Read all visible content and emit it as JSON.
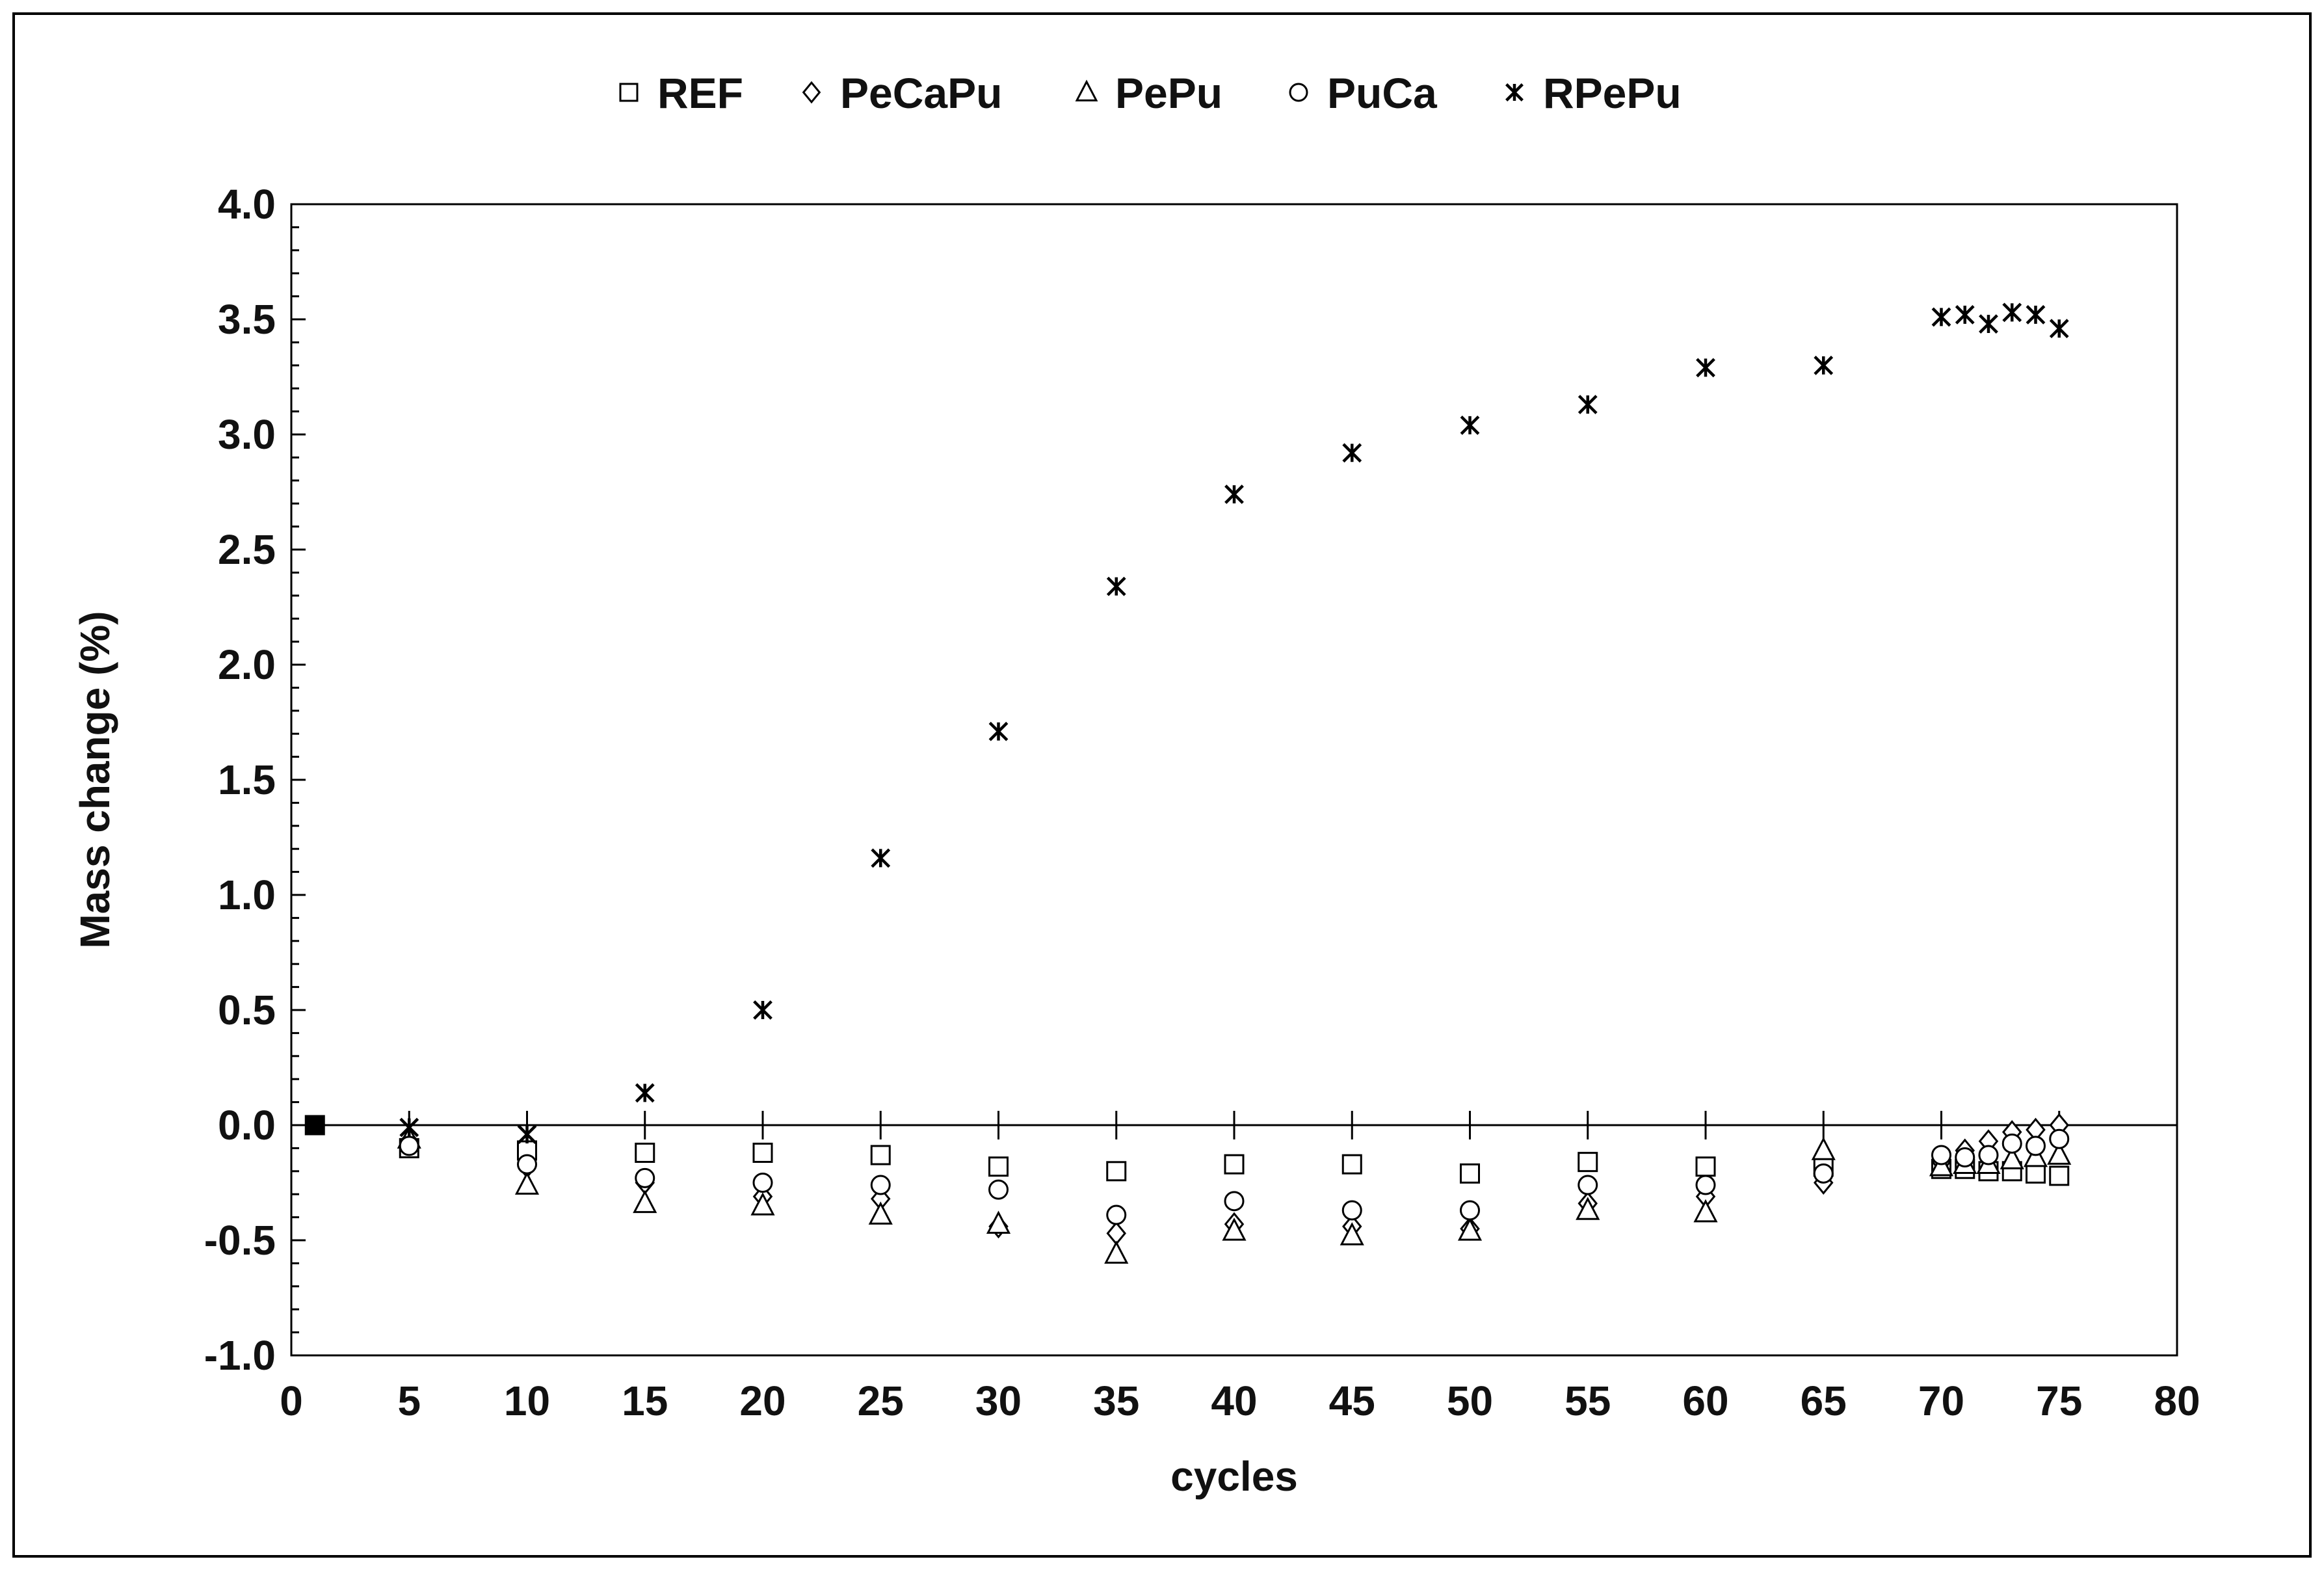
{
  "chart_data": {
    "type": "scatter",
    "title": "",
    "xlabel": "cycles",
    "ylabel": "Mass change (%)",
    "xlim": [
      0,
      80
    ],
    "ylim": [
      -1.0,
      4.0
    ],
    "xticks": [
      0,
      5,
      10,
      15,
      20,
      25,
      30,
      35,
      40,
      45,
      50,
      55,
      60,
      65,
      70,
      75,
      80
    ],
    "xtick_labels": [
      "0",
      "5",
      "10",
      "15",
      "20",
      "25",
      "30",
      "35",
      "40",
      "45",
      "50",
      "55",
      "60",
      "65",
      "70",
      "75",
      "80"
    ],
    "yticks": [
      -1.0,
      -0.5,
      0.0,
      0.5,
      1.0,
      1.5,
      2.0,
      2.5,
      3.0,
      3.5,
      4.0
    ],
    "ytick_labels": [
      "-1.0",
      "-0.5",
      "0.0",
      "0.5",
      "1.0",
      "1.5",
      "2.0",
      "2.5",
      "3.0",
      "3.5",
      "4.0"
    ],
    "grid": false,
    "legend_position": "top",
    "x": [
      1,
      5,
      10,
      15,
      20,
      25,
      30,
      35,
      40,
      45,
      50,
      55,
      60,
      65,
      70,
      71,
      72,
      73,
      74,
      75
    ],
    "series": [
      {
        "name": "REF",
        "marker": "square",
        "values": [
          0.0,
          -0.1,
          -0.11,
          -0.12,
          -0.12,
          -0.13,
          -0.18,
          -0.2,
          -0.17,
          -0.17,
          -0.21,
          -0.16,
          -0.18,
          -0.18,
          -0.19,
          -0.19,
          -0.2,
          -0.2,
          -0.21,
          -0.22
        ]
      },
      {
        "name": "PeCaPu",
        "marker": "diamond",
        "values": [
          0.0,
          -0.07,
          -0.18,
          -0.25,
          -0.31,
          -0.32,
          -0.44,
          -0.47,
          -0.43,
          -0.44,
          -0.45,
          -0.34,
          -0.31,
          -0.25,
          -0.16,
          -0.11,
          -0.07,
          -0.03,
          -0.02,
          0.0
        ]
      },
      {
        "name": "PePu",
        "marker": "triangle",
        "values": [
          0.0,
          -0.06,
          -0.26,
          -0.34,
          -0.35,
          -0.39,
          -0.43,
          -0.56,
          -0.46,
          -0.48,
          -0.46,
          -0.37,
          -0.38,
          -0.11,
          -0.18,
          -0.17,
          -0.17,
          -0.15,
          -0.14,
          -0.13
        ]
      },
      {
        "name": "PuCa",
        "marker": "circle",
        "values": [
          0.0,
          -0.09,
          -0.17,
          -0.23,
          -0.25,
          -0.26,
          -0.28,
          -0.39,
          -0.33,
          -0.37,
          -0.37,
          -0.26,
          -0.26,
          -0.21,
          -0.13,
          -0.14,
          -0.13,
          -0.08,
          -0.09,
          -0.06
        ]
      },
      {
        "name": "RPePu",
        "marker": "asterisk",
        "values": [
          0.0,
          -0.01,
          -0.04,
          0.14,
          0.5,
          1.16,
          1.71,
          2.34,
          2.74,
          2.92,
          3.04,
          3.13,
          3.29,
          3.3,
          3.51,
          3.52,
          3.48,
          3.53,
          3.52,
          3.46
        ]
      }
    ]
  }
}
